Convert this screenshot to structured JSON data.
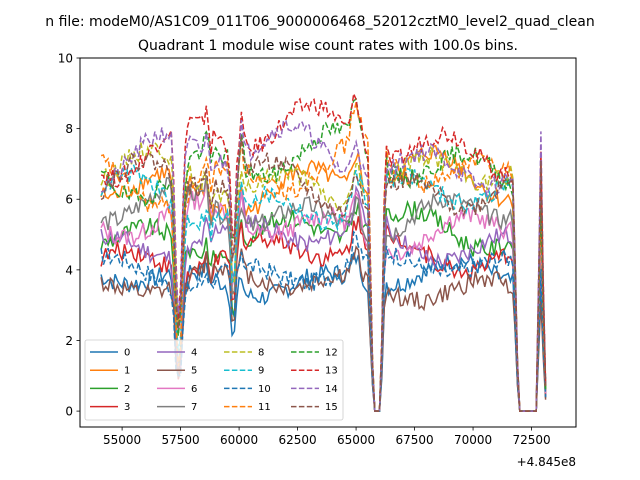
{
  "figure": {
    "suptitle": "n file: modeM0/AS1C09_011T06_9000006468_52012cztM0_level2_quad_clean",
    "offset_text": "+4.845e8"
  },
  "chart_data": {
    "type": "line",
    "title": "Quadrant 1 module wise count rates with 100.0s bins.",
    "xlabel": "",
    "ylabel": "",
    "x_offset": 484500000,
    "xlim": [
      53200,
      74400
    ],
    "ylim": [
      -0.45,
      10
    ],
    "x_ticks": [
      55000,
      57500,
      60000,
      62500,
      65000,
      67500,
      70000,
      72500
    ],
    "x_tick_labels": [
      "55000",
      "57500",
      "60000",
      "62500",
      "65000",
      "67500",
      "70000",
      "72500"
    ],
    "y_ticks": [
      0,
      2,
      4,
      6,
      8,
      10
    ],
    "y_tick_labels": [
      "0",
      "2",
      "4",
      "6",
      "8",
      "10"
    ],
    "grid": false,
    "legend_placement": "lower-left",
    "legend_columns": 4,
    "x_range": [
      54100,
      73100
    ],
    "series": [
      {
        "name": "0",
        "color": "#1f77b4",
        "dashed": false,
        "base": 3.75
      },
      {
        "name": "1",
        "color": "#ff7f0e",
        "dashed": false,
        "base": 6.45
      },
      {
        "name": "2",
        "color": "#2ca02c",
        "dashed": false,
        "base": 5.05
      },
      {
        "name": "3",
        "color": "#d62728",
        "dashed": false,
        "base": 4.45
      },
      {
        "name": "4",
        "color": "#9467bd",
        "dashed": false,
        "base": 4.85
      },
      {
        "name": "5",
        "color": "#8c564b",
        "dashed": false,
        "base": 3.6
      },
      {
        "name": "6",
        "color": "#e377c2",
        "dashed": false,
        "base": 5.25
      },
      {
        "name": "7",
        "color": "#7f7f7f",
        "dashed": false,
        "base": 5.6
      },
      {
        "name": "8",
        "color": "#bcbd22",
        "dashed": true,
        "base": 6.6
      },
      {
        "name": "9",
        "color": "#17becf",
        "dashed": true,
        "base": 6.0
      },
      {
        "name": "10",
        "color": "#1f77b4",
        "dashed": true,
        "base": 4.0
      },
      {
        "name": "11",
        "color": "#ff7f0e",
        "dashed": true,
        "base": 6.7
      },
      {
        "name": "12",
        "color": "#2ca02c",
        "dashed": true,
        "base": 7.0
      },
      {
        "name": "13",
        "color": "#d62728",
        "dashed": true,
        "base": 7.65
      },
      {
        "name": "14",
        "color": "#9467bd",
        "dashed": true,
        "base": 7.2
      },
      {
        "name": "15",
        "color": "#8c564b",
        "dashed": true,
        "base": 6.4
      }
    ]
  }
}
